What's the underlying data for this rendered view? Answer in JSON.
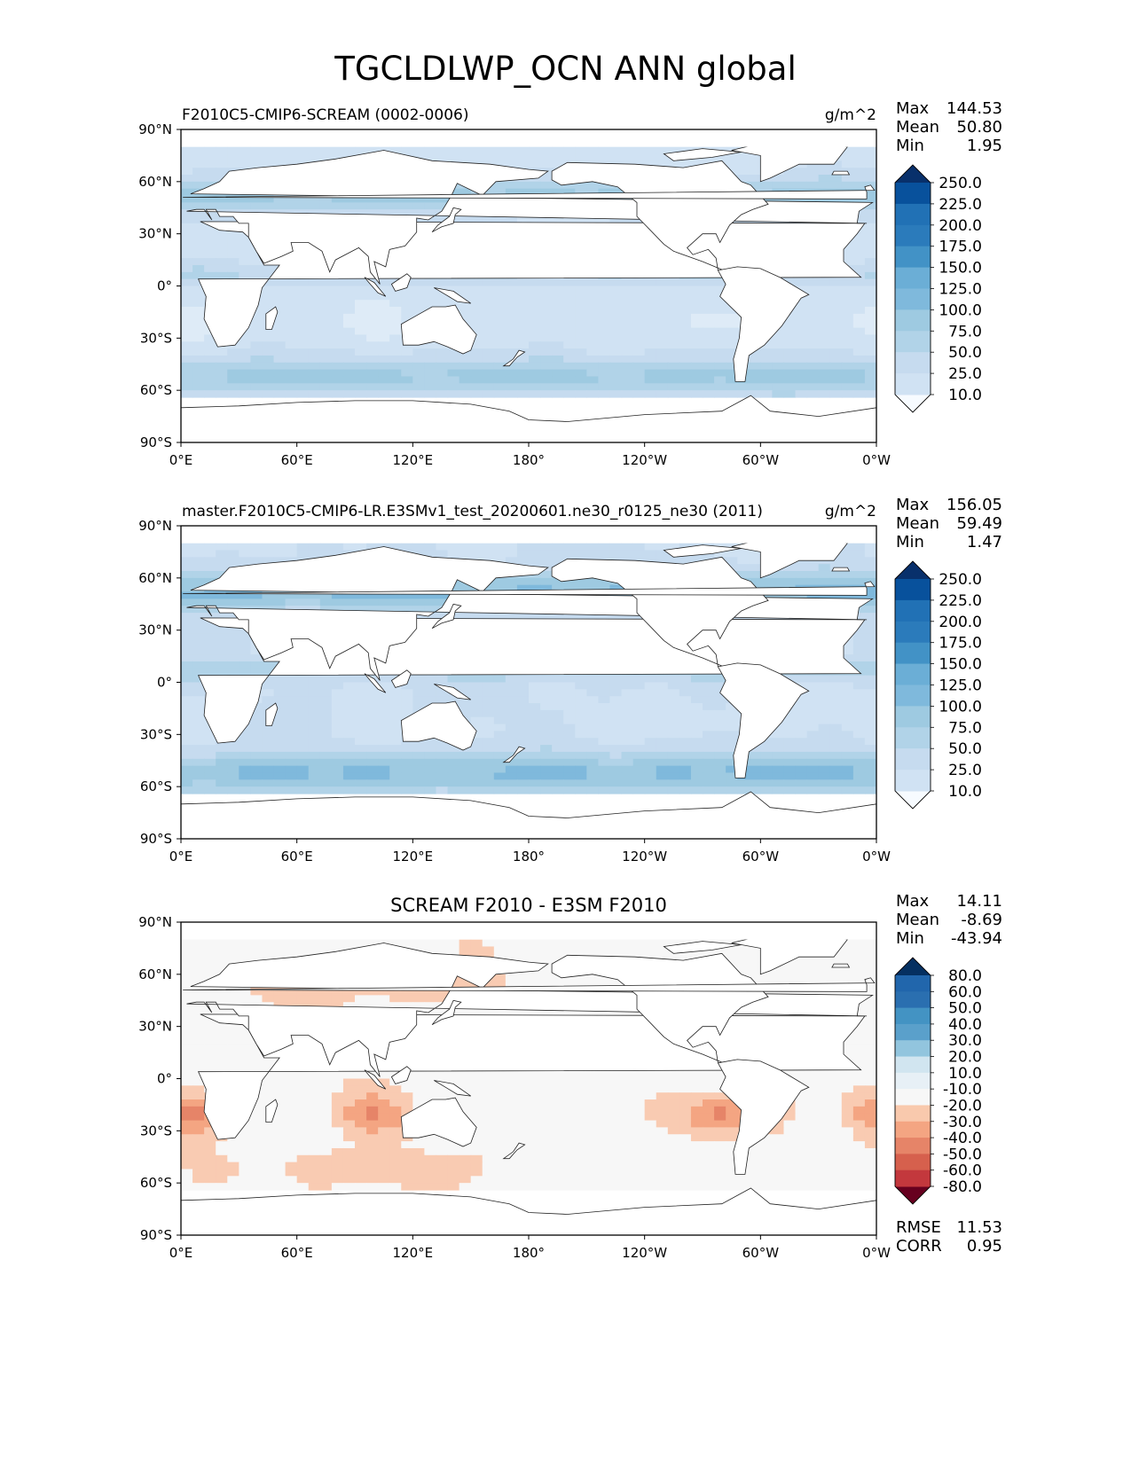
{
  "figure": {
    "title": "TGCLDLWP_OCN ANN global"
  },
  "colors": {
    "seq": [
      "#f7fbff",
      "#deebf7",
      "#d0e2f3",
      "#c6dbef",
      "#b1d3e8",
      "#9ecae1",
      "#7fb9dc",
      "#6baed6",
      "#4292c6",
      "#2b7bbb",
      "#2171b5",
      "#08519c",
      "#08306b"
    ],
    "div": [
      "#67001f",
      "#9f0a29",
      "#c3383d",
      "#d6604d",
      "#e68468",
      "#f4a582",
      "#f9c9ad",
      "#f7f7f7",
      "#e7f0f6",
      "#d1e5f0",
      "#a8d0e5",
      "#92c5de",
      "#5aa0cb",
      "#4393c3",
      "#2a6fb0",
      "#053061"
    ]
  },
  "chart_data": [
    {
      "type": "heatmap",
      "title": "",
      "subtitle_left": "F2010C5-CMIP6-SCREAM (0002-0006)",
      "subtitle_right": "g/m^2",
      "stats": [
        {
          "label": "Max",
          "value": "144.53"
        },
        {
          "label": "Mean",
          "value": "50.80"
        },
        {
          "label": "Min",
          "value": "1.95"
        }
      ],
      "xticks": [
        "0°E",
        "60°E",
        "120°E",
        "180°",
        "120°W",
        "60°W",
        "0°W"
      ],
      "yticks": [
        "90°N",
        "60°N",
        "30°N",
        "0°",
        "30°S",
        "60°S",
        "90°S"
      ],
      "xlim": [
        0,
        360
      ],
      "ylim": [
        -90,
        90
      ],
      "colorbar": {
        "levels": [
          "250.0",
          "225.0",
          "200.0",
          "175.0",
          "150.0",
          "125.0",
          "100.0",
          "75.0",
          "50.0",
          "25.0",
          "10.0"
        ],
        "extend": "both"
      },
      "field": {
        "mean": 50.8,
        "min": 1.95,
        "max": 144.53
      }
    },
    {
      "type": "heatmap",
      "title": "",
      "subtitle_left": "master.F2010C5-CMIP6-LR.E3SMv1_test_20200601.ne30_r0125_ne30 (2011)",
      "subtitle_right": "g/m^2",
      "stats": [
        {
          "label": "Max",
          "value": "156.05"
        },
        {
          "label": "Mean",
          "value": "59.49"
        },
        {
          "label": "Min",
          "value": "1.47"
        }
      ],
      "xticks": [
        "0°E",
        "60°E",
        "120°E",
        "180°",
        "120°W",
        "60°W",
        "0°W"
      ],
      "yticks": [
        "90°N",
        "60°N",
        "30°N",
        "0°",
        "30°S",
        "60°S",
        "90°S"
      ],
      "xlim": [
        0,
        360
      ],
      "ylim": [
        -90,
        90
      ],
      "colorbar": {
        "levels": [
          "250.0",
          "225.0",
          "200.0",
          "175.0",
          "150.0",
          "125.0",
          "100.0",
          "75.0",
          "50.0",
          "25.0",
          "10.0"
        ],
        "extend": "both"
      },
      "field": {
        "mean": 59.49,
        "min": 1.47,
        "max": 156.05
      }
    },
    {
      "type": "heatmap",
      "title": "SCREAM F2010 - E3SM F2010",
      "subtitle_left": "",
      "subtitle_right": "",
      "stats": [
        {
          "label": "Max",
          "value": "14.11"
        },
        {
          "label": "Mean",
          "value": "-8.69"
        },
        {
          "label": "Min",
          "value": "-43.94"
        }
      ],
      "bottom_stats": [
        {
          "label": "RMSE",
          "value": "11.53"
        },
        {
          "label": "CORR",
          "value": "0.95"
        }
      ],
      "xticks": [
        "0°E",
        "60°E",
        "120°E",
        "180°",
        "120°W",
        "60°W",
        "0°W"
      ],
      "yticks": [
        "90°N",
        "60°N",
        "30°N",
        "0°",
        "30°S",
        "60°S",
        "90°S"
      ],
      "xlim": [
        0,
        360
      ],
      "ylim": [
        -90,
        90
      ],
      "colorbar": {
        "levels": [
          "80.0",
          "60.0",
          "50.0",
          "40.0",
          "30.0",
          "20.0",
          "10.0",
          "-10.0",
          "-20.0",
          "-30.0",
          "-40.0",
          "-50.0",
          "-60.0",
          "-80.0"
        ],
        "extend": "both"
      },
      "field": {
        "mean": -8.69,
        "min": -43.94,
        "max": 14.11
      }
    }
  ]
}
